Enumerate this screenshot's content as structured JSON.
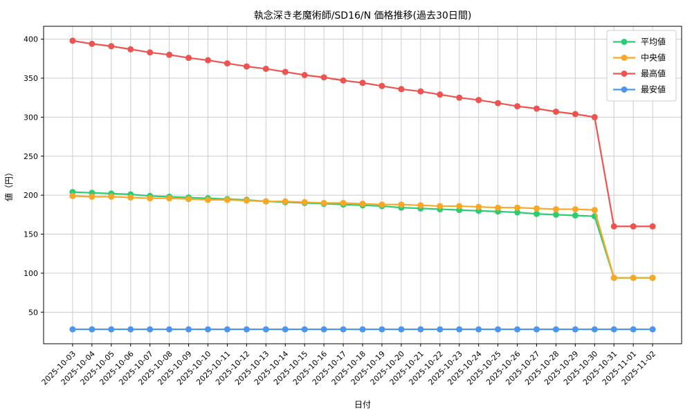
{
  "chart_data": {
    "type": "line",
    "title": "執念深き老魔術師/SD16/N 価格推移(過去30日間)",
    "xlabel": "日付",
    "ylabel": "値（円）",
    "x": [
      "2025-10-03",
      "2025-10-04",
      "2025-10-05",
      "2025-10-06",
      "2025-10-07",
      "2025-10-08",
      "2025-10-09",
      "2025-10-10",
      "2025-10-11",
      "2025-10-12",
      "2025-10-13",
      "2025-10-14",
      "2025-10-15",
      "2025-10-16",
      "2025-10-17",
      "2025-10-18",
      "2025-10-19",
      "2025-10-20",
      "2025-10-21",
      "2025-10-22",
      "2025-10-23",
      "2025-10-24",
      "2025-10-25",
      "2025-10-26",
      "2025-10-27",
      "2025-10-28",
      "2025-10-29",
      "2025-10-30",
      "2025-10-31",
      "2025-11-01",
      "2025-11-02"
    ],
    "series": [
      {
        "key": "average",
        "name": "平均値",
        "color": "#2ecc71",
        "values": [
          204,
          203,
          202,
          201,
          199,
          198,
          197,
          196,
          195,
          194,
          192,
          191,
          190,
          189,
          188,
          187,
          186,
          184,
          183,
          182,
          181,
          180,
          179,
          178,
          176,
          175,
          174,
          173,
          94,
          94,
          94
        ]
      },
      {
        "key": "median",
        "name": "中央値",
        "color": "#f9a825",
        "values": [
          199,
          198,
          198,
          197,
          196,
          196,
          195,
          194,
          194,
          193,
          192,
          192,
          191,
          190,
          190,
          189,
          188,
          188,
          187,
          186,
          186,
          185,
          184,
          184,
          183,
          182,
          182,
          181,
          94,
          94,
          94
        ]
      },
      {
        "key": "max",
        "name": "最高値",
        "color": "#ef5350",
        "values": [
          398,
          394,
          391,
          387,
          383,
          380,
          376,
          373,
          369,
          365,
          362,
          358,
          354,
          351,
          347,
          344,
          340,
          336,
          333,
          329,
          325,
          322,
          318,
          314,
          311,
          307,
          304,
          300,
          160,
          160,
          160
        ]
      },
      {
        "key": "min",
        "name": "最安値",
        "color": "#4d96f0",
        "values": [
          28,
          28,
          28,
          28,
          28,
          28,
          28,
          28,
          28,
          28,
          28,
          28,
          28,
          28,
          28,
          28,
          28,
          28,
          28,
          28,
          28,
          28,
          28,
          28,
          28,
          28,
          28,
          28,
          28,
          28,
          28
        ]
      }
    ],
    "yticks": [
      50,
      100,
      150,
      200,
      250,
      300,
      350,
      400
    ],
    "ylim": [
      9.5,
      416.5
    ],
    "xlim": [
      -1.5,
      31.5
    ],
    "grid": true,
    "grid_color": "#cccccc",
    "x_tick_rotation": 45,
    "legend_position": "upper right",
    "legend_labels": [
      "平均値",
      "中央値",
      "最高値",
      "最安値"
    ]
  }
}
